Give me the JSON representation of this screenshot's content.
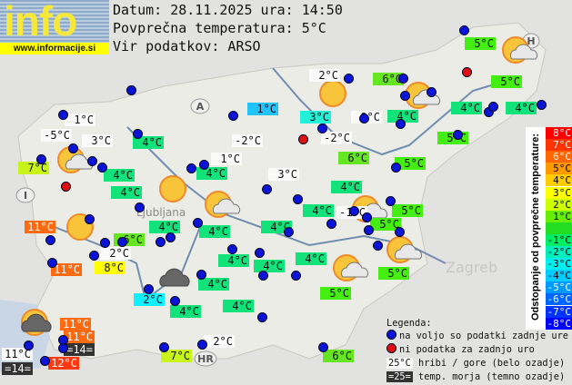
{
  "logo": {
    "word": "info",
    "url": "www.informacije.si"
  },
  "header": {
    "date_line": "Datum: 28.11.2025 ura: 14:50",
    "avg_line": "Povprečna temperatura: 5°C",
    "source_line": "Vir podatkov: ARSO"
  },
  "map_letters": {
    "austria": "A",
    "italy": "I",
    "hungary": "H",
    "croatia": "HR",
    "ljubljana": "Ljubljana",
    "zagreb": "Zagreb"
  },
  "stations": [
    {
      "t": "5°C",
      "c": "g5"
    },
    {
      "t": "2°C",
      "c": "w"
    },
    {
      "t": "6°C",
      "c": "g6"
    },
    {
      "t": "5°C",
      "c": "g5"
    },
    {
      "t": "1°C",
      "c": "c1"
    },
    {
      "t": "3°C",
      "c": "t3"
    },
    {
      "t": "0°C",
      "c": "w"
    },
    {
      "t": "4°C",
      "c": "g4"
    },
    {
      "t": "4°C",
      "c": "g4"
    },
    {
      "t": "4°C",
      "c": "g4"
    },
    {
      "t": "1°C",
      "c": "w"
    },
    {
      "t": "-5°C",
      "c": "w"
    },
    {
      "t": "3°C",
      "c": "w"
    },
    {
      "t": "4°C",
      "c": "g4"
    },
    {
      "t": "-2°C",
      "c": "w"
    },
    {
      "t": "-2°C",
      "c": "w"
    },
    {
      "t": "5°C",
      "c": "g5"
    },
    {
      "t": "6°C",
      "c": "g6"
    },
    {
      "t": "7°C",
      "c": "g7"
    },
    {
      "t": "1°C",
      "c": "w"
    },
    {
      "t": "5°C",
      "c": "g5"
    },
    {
      "t": "4°C",
      "c": "g4"
    },
    {
      "t": "4°C",
      "c": "g4"
    },
    {
      "t": "3°C",
      "c": "w"
    },
    {
      "t": "4°C",
      "c": "g4"
    },
    {
      "t": "4°C",
      "c": "g4"
    },
    {
      "t": "4°C",
      "c": "g4"
    },
    {
      "t": "-1°C",
      "c": "w"
    },
    {
      "t": "5°C",
      "c": "g5"
    },
    {
      "t": "4°C",
      "c": "g4"
    },
    {
      "t": "4°C",
      "c": "g4"
    },
    {
      "t": "4°C",
      "c": "g4"
    },
    {
      "t": "5°C",
      "c": "g5"
    },
    {
      "t": "11°C",
      "c": "o11"
    },
    {
      "t": "6°C",
      "c": "g6"
    },
    {
      "t": "2°C",
      "c": "w"
    },
    {
      "t": "4°C",
      "c": "g4"
    },
    {
      "t": "4°C",
      "c": "g4"
    },
    {
      "t": "4°C",
      "c": "g4"
    },
    {
      "t": "5°C",
      "c": "g5"
    },
    {
      "t": "11°C",
      "c": "o11"
    },
    {
      "t": "8°C",
      "c": "y8"
    },
    {
      "t": "4°C",
      "c": "g4"
    },
    {
      "t": "2°C",
      "c": "c2"
    },
    {
      "t": "4°C",
      "c": "g4"
    },
    {
      "t": "4°C",
      "c": "g4"
    },
    {
      "t": "5°C",
      "c": "g5"
    },
    {
      "t": "11°C",
      "c": "o11"
    },
    {
      "t": "11°C",
      "c": "o11"
    },
    {
      "t": "=14=",
      "c": "d"
    },
    {
      "t": "11°C",
      "c": "w"
    },
    {
      "t": "=14=",
      "c": "d"
    },
    {
      "t": "12°C",
      "c": "r12"
    },
    {
      "t": "7°C",
      "c": "g7"
    },
    {
      "t": "2°C",
      "c": "w"
    },
    {
      "t": "6°C",
      "c": "g6"
    }
  ],
  "weather_icons": [
    "sun-cloud",
    "sun",
    "sun-cloud",
    "sun",
    "sun-cloud",
    "sun-cloud",
    "sun",
    "sun-cloud",
    "sun-cloud",
    "sun-cloud",
    "dark-cloud",
    "sun-dark-cloud"
  ],
  "colorbar": {
    "title": "Odstopanje od povprečne temperature:",
    "rows": [
      {
        "t": "8°C",
        "bg": "#ff0000",
        "fg": "#fff"
      },
      {
        "t": "7°C",
        "bg": "#ff3300",
        "fg": "#fff"
      },
      {
        "t": "6°C",
        "bg": "#ff6600",
        "fg": "#fff"
      },
      {
        "t": "5°C",
        "bg": "#ff9900",
        "fg": "#000"
      },
      {
        "t": "4°C",
        "bg": "#ffcc00",
        "fg": "#000"
      },
      {
        "t": "3°C",
        "bg": "#ffff00",
        "fg": "#000"
      },
      {
        "t": "2°C",
        "bg": "#ccff00",
        "fg": "#000"
      },
      {
        "t": "1°C",
        "bg": "#66ee00",
        "fg": "#000"
      },
      {
        "t": "",
        "bg": "#22dd22",
        "fg": "#000"
      },
      {
        "t": "-1°C",
        "bg": "#00ee66",
        "fg": "#000"
      },
      {
        "t": "-2°C",
        "bg": "#00eebb",
        "fg": "#000"
      },
      {
        "t": "-3°C",
        "bg": "#00eeee",
        "fg": "#000"
      },
      {
        "t": "-4°C",
        "bg": "#00ccff",
        "fg": "#000"
      },
      {
        "t": "-5°C",
        "bg": "#0099ff",
        "fg": "#fff"
      },
      {
        "t": "-6°C",
        "bg": "#0066ff",
        "fg": "#fff"
      },
      {
        "t": "-7°C",
        "bg": "#0033ff",
        "fg": "#fff"
      },
      {
        "t": "-8°C",
        "bg": "#0000ff",
        "fg": "#fff"
      }
    ]
  },
  "legend": {
    "title": "Legenda:",
    "blue": "na voljo so podatki zadnje ure",
    "red": "ni podatka za zadnjo uro",
    "mountain_sample": "25°C",
    "mountain": "hribi / gore (belo ozadje)",
    "sea_sample": "=25=",
    "sea": "temp. morja (temno ozadje)"
  },
  "colors": {
    "station_ok": "#0a14d8",
    "station_missing": "#e01010"
  }
}
